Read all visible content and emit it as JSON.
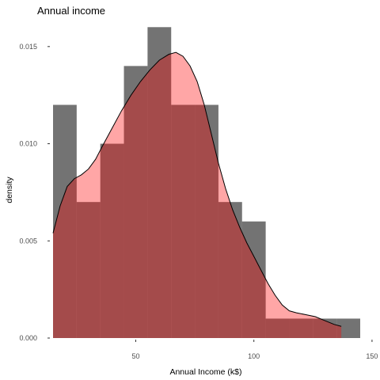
{
  "chart_data": {
    "type": "histogram",
    "title": "Annual income",
    "xlabel": "Annual Income (k$)",
    "ylabel": "density",
    "xlim": [
      15,
      145
    ],
    "ylim": [
      0,
      0.0165
    ],
    "x_ticks": [
      {
        "value": 50,
        "label": "50"
      },
      {
        "value": 100,
        "label": "100"
      },
      {
        "value": 150,
        "label": "150"
      }
    ],
    "y_ticks": [
      {
        "value": 0.0,
        "label": "0.000"
      },
      {
        "value": 0.005,
        "label": "0.005"
      },
      {
        "value": 0.01,
        "label": "0.010"
      },
      {
        "value": 0.015,
        "label": "0.015"
      }
    ],
    "grid": false,
    "histogram": {
      "color": "#000000",
      "opacity": 0.55,
      "bin_width": 10,
      "bins": [
        {
          "x0": 15,
          "x1": 25,
          "density": 0.012
        },
        {
          "x0": 25,
          "x1": 35,
          "density": 0.007
        },
        {
          "x0": 35,
          "x1": 45,
          "density": 0.01
        },
        {
          "x0": 45,
          "x1": 55,
          "density": 0.014
        },
        {
          "x0": 55,
          "x1": 65,
          "density": 0.016
        },
        {
          "x0": 65,
          "x1": 75,
          "density": 0.012
        },
        {
          "x0": 75,
          "x1": 85,
          "density": 0.012
        },
        {
          "x0": 85,
          "x1": 95,
          "density": 0.007
        },
        {
          "x0": 95,
          "x1": 105,
          "density": 0.006
        },
        {
          "x0": 105,
          "x1": 115,
          "density": 0.001
        },
        {
          "x0": 115,
          "x1": 125,
          "density": 0.001
        },
        {
          "x0": 125,
          "x1": 135,
          "density": 0.001
        },
        {
          "x0": 135,
          "x1": 145,
          "density": 0.001
        }
      ]
    },
    "density": {
      "fill": "#ff0000",
      "fill_opacity": 0.35,
      "line_color": "#000000",
      "points": [
        [
          15,
          0.0054
        ],
        [
          18,
          0.0068
        ],
        [
          21,
          0.0078
        ],
        [
          24,
          0.0082
        ],
        [
          27,
          0.0084
        ],
        [
          30,
          0.0087
        ],
        [
          33,
          0.0092
        ],
        [
          36,
          0.0099
        ],
        [
          40,
          0.0108
        ],
        [
          44,
          0.0117
        ],
        [
          48,
          0.0125
        ],
        [
          52,
          0.0132
        ],
        [
          56,
          0.0138
        ],
        [
          60,
          0.0143
        ],
        [
          64,
          0.0146
        ],
        [
          67,
          0.0147
        ],
        [
          70,
          0.0145
        ],
        [
          73,
          0.014
        ],
        [
          76,
          0.0132
        ],
        [
          79,
          0.012
        ],
        [
          82,
          0.0105
        ],
        [
          85,
          0.009
        ],
        [
          88,
          0.0077
        ],
        [
          91,
          0.0066
        ],
        [
          94,
          0.0057
        ],
        [
          97,
          0.0049
        ],
        [
          100,
          0.0042
        ],
        [
          103,
          0.0035
        ],
        [
          106,
          0.0028
        ],
        [
          109,
          0.0022
        ],
        [
          112,
          0.0017
        ],
        [
          115,
          0.0014
        ],
        [
          118,
          0.0013
        ],
        [
          122,
          0.0012
        ],
        [
          126,
          0.0011
        ],
        [
          130,
          0.0009
        ],
        [
          134,
          0.0007
        ],
        [
          137,
          0.0006
        ]
      ]
    }
  }
}
